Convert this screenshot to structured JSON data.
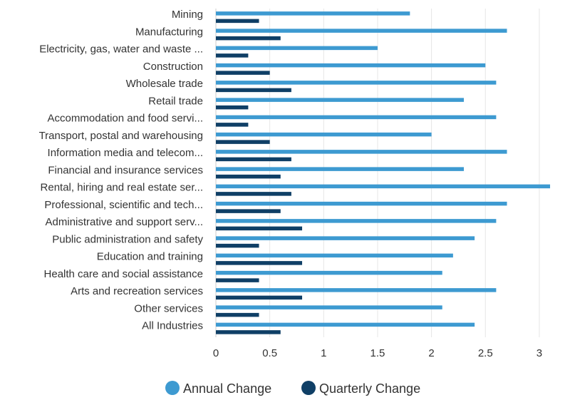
{
  "chart_data": {
    "type": "bar",
    "orientation": "horizontal",
    "categories": [
      "Mining",
      "Manufacturing",
      "Electricity, gas, water and waste ...",
      "Construction",
      "Wholesale trade",
      "Retail trade",
      "Accommodation and food servi...",
      "Transport, postal and warehousing",
      "Information media and telecom...",
      "Financial and insurance services",
      "Rental, hiring and real estate ser...",
      "Professional, scientific and tech...",
      "Administrative and support serv...",
      "Public administration and safety",
      "Education and training",
      "Health care and social assistance",
      "Arts and recreation services",
      "Other services",
      "All Industries"
    ],
    "series": [
      {
        "name": "Annual Change",
        "color": "#3d9ad1",
        "values": [
          1.8,
          2.7,
          1.5,
          2.5,
          2.6,
          2.3,
          2.6,
          2.0,
          2.7,
          2.3,
          3.1,
          2.7,
          2.6,
          2.4,
          2.2,
          2.1,
          2.6,
          2.1,
          2.4
        ]
      },
      {
        "name": "Quarterly Change",
        "color": "#0f3f66",
        "values": [
          0.4,
          0.6,
          0.3,
          0.5,
          0.7,
          0.3,
          0.3,
          0.5,
          0.7,
          0.6,
          0.7,
          0.6,
          0.8,
          0.4,
          0.8,
          0.4,
          0.8,
          0.4,
          0.6
        ]
      }
    ],
    "xticks": [
      "0",
      "0.5",
      "1",
      "1.5",
      "2",
      "2.5",
      "3"
    ],
    "xlim": [
      0,
      3.1
    ],
    "grid": true,
    "legend": "bottom-center",
    "title": "",
    "xlabel": "",
    "ylabel": ""
  }
}
